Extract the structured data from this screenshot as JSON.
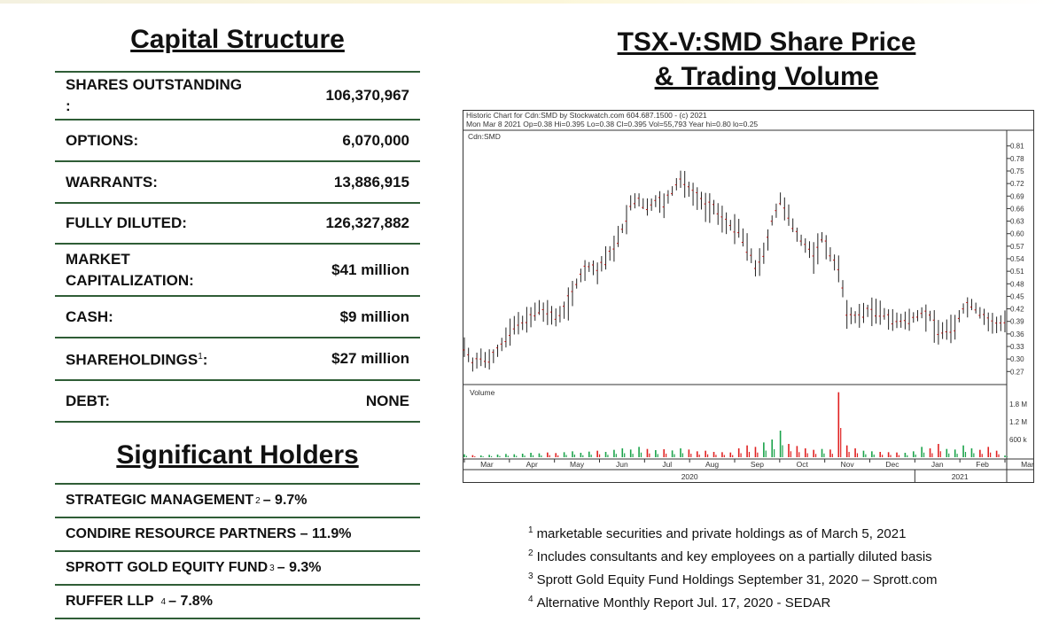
{
  "capital_structure": {
    "title": "Capital Structure",
    "rows": [
      {
        "label": "SHARES OUTSTANDING :",
        "value": "106,370,967"
      },
      {
        "label": "OPTIONS:",
        "value": "6,070,000"
      },
      {
        "label": "WARRANTS:",
        "value": "13,886,915"
      },
      {
        "label": "FULLY DILUTED:",
        "value": "126,327,882"
      },
      {
        "label": "MARKET CAPITALIZATION:",
        "value": "$41 million"
      },
      {
        "label": "CASH:",
        "value": "$9 million"
      },
      {
        "label": "SHAREHOLDINGS",
        "sup": "1",
        "label_suffix": ":",
        "value": "$27 million"
      },
      {
        "label": "DEBT:",
        "value": "NONE"
      }
    ]
  },
  "significant_holders": {
    "title": "Significant Holders",
    "items": [
      {
        "name": "STRATEGIC MANAGEMENT",
        "sup": "2",
        "pct": "– 9.7%"
      },
      {
        "name": "CONDIRE RESOURCE PARTNERS – 11.9%",
        "sup": "",
        "pct": ""
      },
      {
        "name": "SPROTT GOLD EQUITY FUND",
        "sup": "3",
        "pct": " – 9.3%"
      },
      {
        "name": "RUFFER LLP",
        "sup": "4",
        "pct": "– 7.8%"
      }
    ]
  },
  "chart_heading": {
    "line1": "TSX-V:SMD Share Price",
    "line2": "& Trading Volume"
  },
  "chart_data": {
    "type": "candlestick",
    "header_line1": "Historic Chart for Cdn:SMD by Stockwatch.com 604.687.1500 - (c) 2021",
    "header_line2": "Mon Mar  8 2021  Op=0.38  Hi=0.395  Lo=0.38  Cl=0.395  Vol=55,793  Year hi=0.80  lo=0.25",
    "symbol": "Cdn:SMD",
    "volume_label": "Volume",
    "price_ticks": [
      "0.81",
      "0.78",
      "0.75",
      "0.72",
      "0.69",
      "0.66",
      "0.63",
      "0.60",
      "0.57",
      "0.54",
      "0.51",
      "0.48",
      "0.45",
      "0.42",
      "0.39",
      "0.36",
      "0.33",
      "0.30",
      "0.27"
    ],
    "price_range": [
      0.26,
      0.82
    ],
    "volume_ticks": [
      "1.8 M",
      "1.2 M",
      "600 k"
    ],
    "volume_range": [
      0,
      2400000
    ],
    "months": [
      "Mar",
      "Apr",
      "May",
      "Jun",
      "Jul",
      "Aug",
      "Sep",
      "Oct",
      "Nov",
      "Dec",
      "Jan",
      "Feb",
      "Mar"
    ],
    "years": [
      "2020",
      "2021"
    ],
    "weekly_close": [
      0.33,
      0.29,
      0.3,
      0.3,
      0.32,
      0.35,
      0.38,
      0.39,
      0.4,
      0.42,
      0.41,
      0.4,
      0.42,
      0.46,
      0.5,
      0.52,
      0.51,
      0.54,
      0.57,
      0.61,
      0.67,
      0.68,
      0.66,
      0.68,
      0.67,
      0.7,
      0.73,
      0.71,
      0.69,
      0.67,
      0.66,
      0.64,
      0.62,
      0.61,
      0.57,
      0.52,
      0.55,
      0.63,
      0.68,
      0.64,
      0.6,
      0.57,
      0.55,
      0.59,
      0.55,
      0.52,
      0.41,
      0.4,
      0.41,
      0.42,
      0.41,
      0.4,
      0.39,
      0.39,
      0.4,
      0.41,
      0.4,
      0.37,
      0.37,
      0.38,
      0.42,
      0.43,
      0.41,
      0.39,
      0.38,
      0.395
    ],
    "weekly_volume": [
      100000,
      70000,
      60000,
      80000,
      90000,
      110000,
      100000,
      120000,
      150000,
      130000,
      160000,
      140000,
      170000,
      200000,
      150000,
      190000,
      220000,
      180000,
      250000,
      300000,
      260000,
      350000,
      280000,
      240000,
      270000,
      230000,
      300000,
      260000,
      200000,
      220000,
      180000,
      170000,
      160000,
      300000,
      400000,
      350000,
      500000,
      600000,
      900000,
      450000,
      380000,
      300000,
      250000,
      280000,
      260000,
      2200000,
      400000,
      300000,
      220000,
      200000,
      180000,
      170000,
      160000,
      150000,
      200000,
      350000,
      300000,
      450000,
      280000,
      260000,
      400000,
      300000,
      250000,
      350000,
      220000,
      55793
    ]
  },
  "footnotes": [
    {
      "n": "1",
      "text": "marketable securities and private holdings as of March 5, 2021"
    },
    {
      "n": "2",
      "text": "Includes consultants and key employees on a partially diluted basis"
    },
    {
      "n": "3",
      "text": "Sprott Gold Equity Fund Holdings September 31, 2020 – Sprott.com"
    },
    {
      "n": "4",
      "text": "Alternative Monthly Report Jul. 17, 2020 - SEDAR"
    }
  ]
}
